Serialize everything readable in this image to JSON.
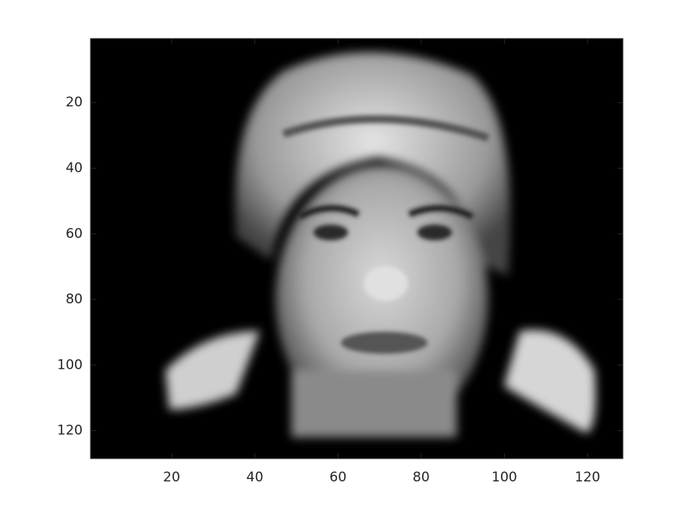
{
  "chart_data": {
    "type": "image",
    "xlim": [
      0.5,
      128.5
    ],
    "ylim": [
      0.5,
      128.5
    ],
    "y_direction": "reverse",
    "xticks": [
      20,
      40,
      60,
      80,
      100,
      120
    ],
    "yticks": [
      20,
      40,
      60,
      80,
      100,
      120
    ]
  }
}
